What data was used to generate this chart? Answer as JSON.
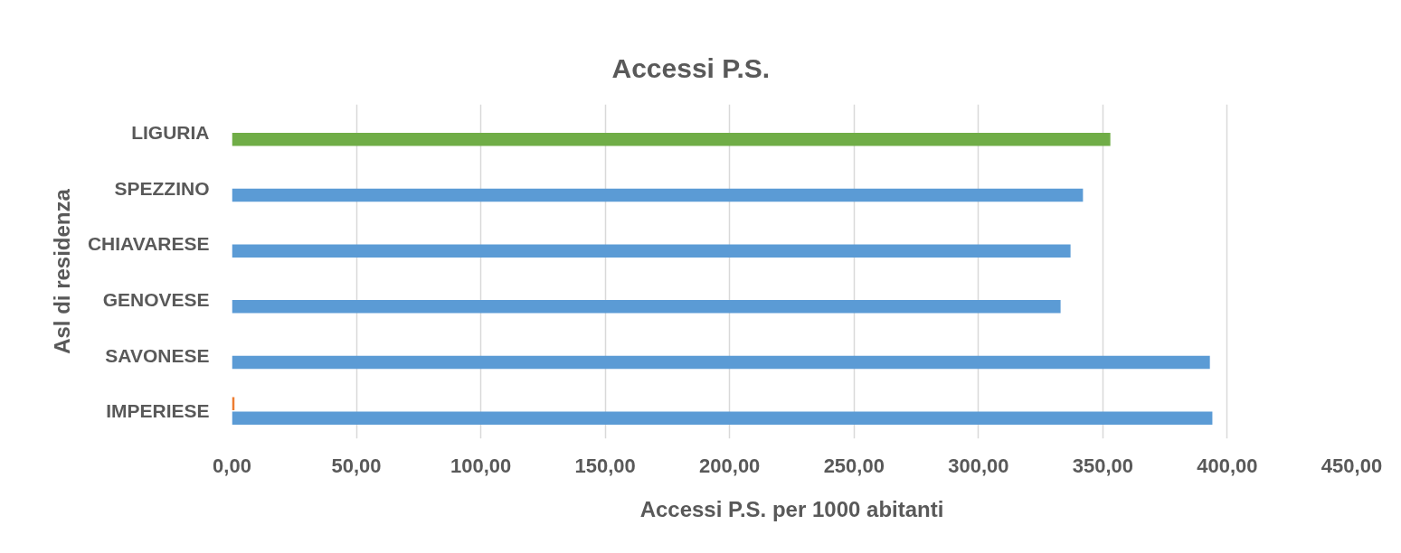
{
  "chart_data": {
    "type": "bar",
    "orientation": "horizontal",
    "title": "Accessi P.S.",
    "xlabel": "Accessi P.S. per 1000 abitanti",
    "ylabel": "Asl di residenza",
    "categories": [
      "LIGURIA",
      "SPEZZINO",
      "CHIAVARESE",
      "GENOVESE",
      "SAVONESE",
      "IMPERIESE"
    ],
    "series": [
      {
        "colors": [
          "#70ad47",
          "#5b9bd5",
          "#5b9bd5",
          "#5b9bd5",
          "#5b9bd5",
          "#5b9bd5"
        ],
        "values": [
          353,
          342,
          337,
          333,
          393,
          394
        ]
      },
      {
        "color": "#ed7d31",
        "values": [
          null,
          null,
          null,
          null,
          null,
          1
        ]
      }
    ],
    "xlim": [
      0,
      450
    ],
    "xticks": [
      {
        "value": 0,
        "label": "0,00"
      },
      {
        "value": 50,
        "label": "50,00"
      },
      {
        "value": 100,
        "label": "100,00"
      },
      {
        "value": 150,
        "label": "150,00"
      },
      {
        "value": 200,
        "label": "200,00"
      },
      {
        "value": 250,
        "label": "250,00"
      },
      {
        "value": 300,
        "label": "300,00"
      },
      {
        "value": 350,
        "label": "350,00"
      },
      {
        "value": 400,
        "label": "400,00"
      },
      {
        "value": 450,
        "label": "450,00"
      }
    ],
    "grid": "x"
  }
}
